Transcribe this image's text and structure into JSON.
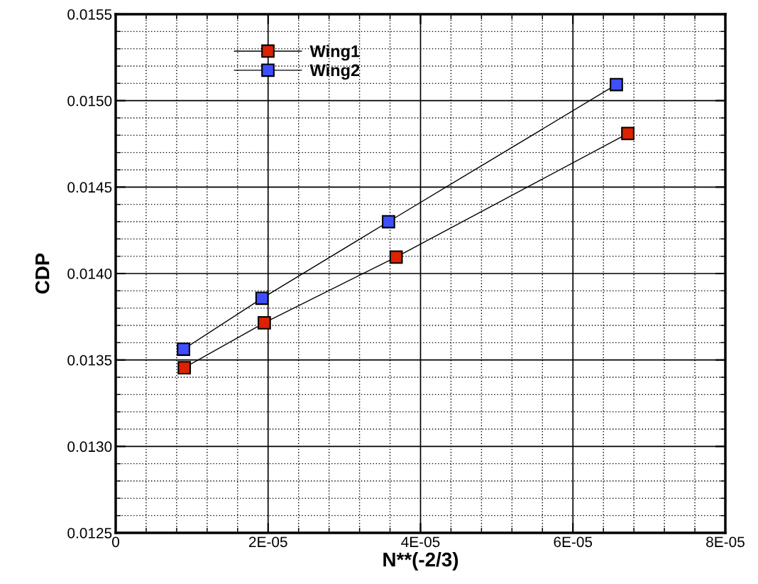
{
  "chart_data": {
    "type": "line",
    "xlabel": "N**(-2/3)",
    "ylabel": "CDP",
    "series": [
      {
        "name": "Wing1",
        "color": "#dd2200",
        "x": [
          9e-06,
          1.95e-05,
          3.68e-05,
          6.72e-05
        ],
        "values": [
          0.013455,
          0.013715,
          0.014095,
          0.01481
        ]
      },
      {
        "name": "Wing2",
        "color": "#3f4fff",
        "x": [
          8.9e-06,
          1.92e-05,
          3.58e-05,
          6.57e-05
        ],
        "values": [
          0.013562,
          0.013857,
          0.0143,
          0.015093
        ]
      }
    ],
    "xlim": [
      0,
      8e-05
    ],
    "ylim": [
      0.0125,
      0.0155
    ],
    "xticks": [
      0,
      {
        "value": 2e-05,
        "label": "2E-05"
      },
      {
        "value": 4e-05,
        "label": "4E-05"
      },
      {
        "value": 6e-05,
        "label": "6E-05"
      },
      {
        "value": 8e-05,
        "label": "8E-05"
      }
    ],
    "yticks": [
      {
        "value": 0.0125,
        "label": "0.0125"
      },
      {
        "value": 0.013,
        "label": "0.0130"
      },
      {
        "value": 0.0135,
        "label": "0.0135"
      },
      {
        "value": 0.014,
        "label": "0.0140"
      },
      {
        "value": 0.0145,
        "label": "0.0145"
      },
      {
        "value": 0.015,
        "label": "0.0150"
      },
      {
        "value": 0.0155,
        "label": "0.0155"
      }
    ],
    "grid": true,
    "legend": "top left",
    "marker": "square",
    "line_style": "solid"
  }
}
